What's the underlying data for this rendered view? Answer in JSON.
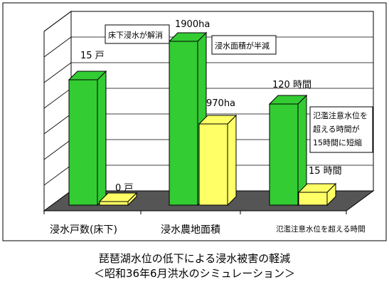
{
  "chart_data": {
    "type": "bar",
    "categories": [
      "浸水戸数(床下)",
      "浸水農地面積",
      "氾濫注意水位を超える時間"
    ],
    "series": [
      {
        "name": "",
        "values_text": [
          "15 戸",
          "1900ha",
          "120 時間"
        ],
        "color": "#33cc33"
      },
      {
        "name": "",
        "values_text": [
          "0 戸",
          "970ha",
          "15 時間"
        ],
        "color": "#ffff66"
      }
    ],
    "annotations": [
      "床下浸水が解消",
      "浸水面積が半減",
      "氾濫注意水位を\n超える時間が\n15時間に短縮"
    ],
    "grid": true,
    "title": "琵琶湖水位の低下による浸水被害の軽減",
    "subtitle": "＜昭和36年6月洪水のシミュレーション＞"
  }
}
